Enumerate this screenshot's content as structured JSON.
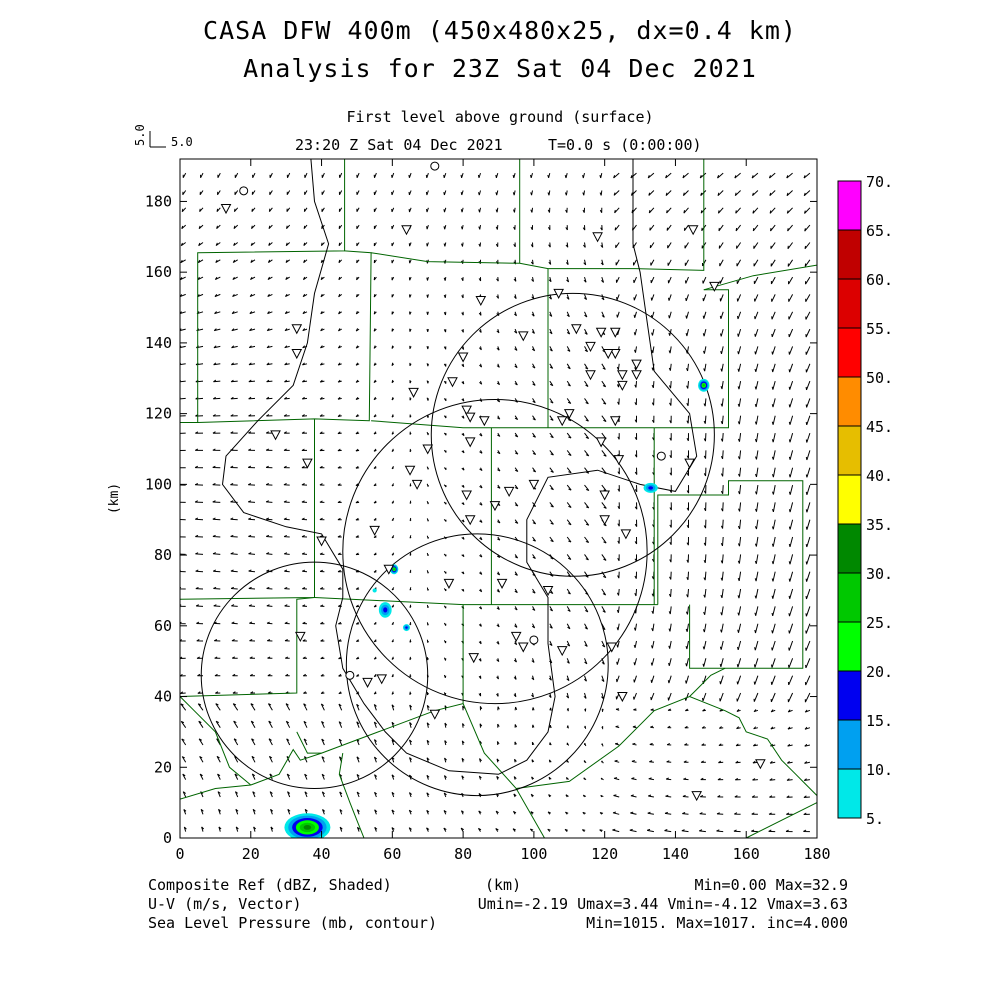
{
  "header": {
    "title_line1": "CASA DFW 400m (450x480x25, dx=0.4 km)",
    "title_line2": "Analysis for 23Z Sat 04 Dec 2021",
    "level": "First level above ground (surface)",
    "time": "23:20 Z Sat 04 Dec 2021",
    "elapsed": "T=0.0 s (0:00:00)",
    "ref_vector_value_vertical": "5.0",
    "ref_vector_value_horizontal": "5.0"
  },
  "footer": {
    "field1": "Composite Ref (dBZ, Shaded)",
    "field2": "U-V (m/s, Vector)",
    "field3": "Sea Level Pressure (mb, contour)",
    "xunit": "(km)",
    "stats1": "Min=0.00 Max=32.9",
    "stats2": "Umin=-2.19 Umax=3.44 Vmin=-4.12 Vmax=3.63",
    "stats3": "Min=1015. Max=1017. inc=4.000"
  },
  "chart_data": {
    "type": "heatmap",
    "xlabel": "(km)",
    "ylabel": "(km)",
    "xlim": [
      0,
      180
    ],
    "ylim": [
      0,
      192
    ],
    "xticks": [
      0,
      20,
      40,
      60,
      80,
      100,
      120,
      140,
      160,
      180
    ],
    "yticks": [
      0,
      20,
      40,
      60,
      80,
      100,
      120,
      140,
      160,
      180
    ],
    "colorbar": {
      "labels": [
        "5.",
        "10.",
        "15.",
        "20.",
        "25.",
        "30.",
        "35.",
        "40.",
        "45.",
        "50.",
        "55.",
        "60.",
        "65.",
        "70."
      ],
      "colors": [
        "#00e8e8",
        "#00a0f0",
        "#0000f0",
        "#00ff00",
        "#00c800",
        "#008800",
        "#ffff00",
        "#e6be00",
        "#ff8c00",
        "#ff0000",
        "#dc0000",
        "#c00000",
        "#ff00ff"
      ]
    },
    "reflectivity_echoes": [
      {
        "x": 148,
        "y": 128,
        "rx": 1.6,
        "ry": 1.8,
        "max_dbz": 25
      },
      {
        "x": 133,
        "y": 99,
        "rx": 2.0,
        "ry": 1.4,
        "max_dbz": 15
      },
      {
        "x": 60.5,
        "y": 76,
        "rx": 1.2,
        "ry": 1.4,
        "max_dbz": 25
      },
      {
        "x": 58,
        "y": 64.5,
        "rx": 1.8,
        "ry": 2.2,
        "max_dbz": 15
      },
      {
        "x": 64,
        "y": 59.5,
        "rx": 1.0,
        "ry": 1.0,
        "max_dbz": 15
      },
      {
        "x": 55,
        "y": 70,
        "rx": 0.6,
        "ry": 0.6,
        "max_dbz": 5
      },
      {
        "x": 36,
        "y": 3,
        "rx": 6.5,
        "ry": 4.0,
        "max_dbz": 32.9
      }
    ],
    "radar_range_rings": [
      {
        "x": 111,
        "y": 114,
        "r": 40
      },
      {
        "x": 89,
        "y": 81,
        "r": 43
      },
      {
        "x": 38,
        "y": 46,
        "r": 32
      },
      {
        "x": 84,
        "y": 49,
        "r": 37
      }
    ],
    "pressure_contours_mb": [
      1015,
      1017
    ],
    "stations_triangle": [
      [
        13,
        178
      ],
      [
        64,
        172
      ],
      [
        118,
        170
      ],
      [
        145,
        172
      ],
      [
        151,
        156
      ],
      [
        107,
        154
      ],
      [
        85,
        152
      ],
      [
        112,
        144
      ],
      [
        119,
        143
      ],
      [
        123,
        143
      ],
      [
        97,
        142
      ],
      [
        33,
        144
      ],
      [
        33,
        137
      ],
      [
        116,
        139
      ],
      [
        123,
        137
      ],
      [
        121,
        137
      ],
      [
        129,
        134
      ],
      [
        80,
        136
      ],
      [
        125,
        131
      ],
      [
        125,
        128
      ],
      [
        116,
        131
      ],
      [
        110,
        120
      ],
      [
        108,
        118
      ],
      [
        123,
        118
      ],
      [
        129,
        131
      ],
      [
        66,
        126
      ],
      [
        77,
        129
      ],
      [
        81,
        121
      ],
      [
        82,
        119
      ],
      [
        86,
        118
      ],
      [
        119,
        112
      ],
      [
        82,
        112
      ],
      [
        70,
        110
      ],
      [
        65,
        104
      ],
      [
        67,
        100
      ],
      [
        89,
        94
      ],
      [
        93,
        98
      ],
      [
        100,
        100
      ],
      [
        144,
        106
      ],
      [
        124,
        107
      ],
      [
        27,
        114
      ],
      [
        36,
        106
      ],
      [
        120,
        97
      ],
      [
        126,
        86
      ],
      [
        81,
        97
      ],
      [
        82,
        90
      ],
      [
        120,
        90
      ],
      [
        55,
        87
      ],
      [
        40,
        84
      ],
      [
        59,
        76
      ],
      [
        76,
        72
      ],
      [
        91,
        72
      ],
      [
        104,
        70
      ],
      [
        95,
        57
      ],
      [
        97,
        54
      ],
      [
        122,
        54
      ],
      [
        108,
        53
      ],
      [
        83,
        51
      ],
      [
        34,
        57
      ],
      [
        53,
        44
      ],
      [
        57,
        45
      ],
      [
        125,
        40
      ],
      [
        72,
        35
      ],
      [
        146,
        12
      ],
      [
        164,
        21
      ]
    ],
    "stations_circle": [
      [
        18,
        183
      ],
      [
        72,
        190
      ],
      [
        100,
        56
      ],
      [
        48,
        46
      ],
      [
        136,
        108
      ]
    ]
  }
}
